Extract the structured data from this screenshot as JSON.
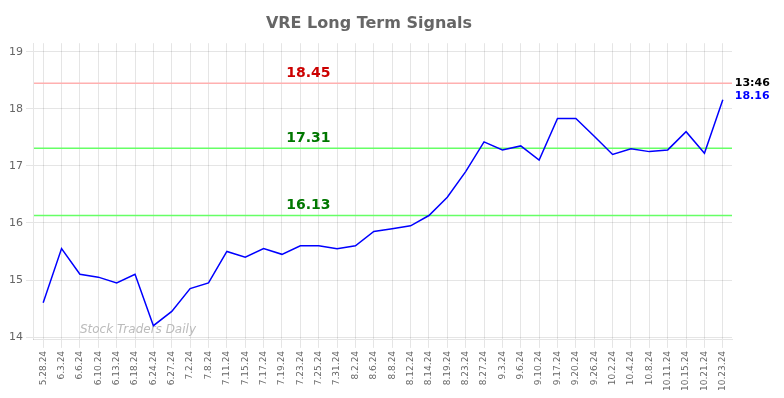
{
  "chart_data": {
    "type": "line",
    "title": "VRE Long Term Signals",
    "categories": [
      "5.28.24",
      "6.3.24",
      "6.6.24",
      "6.10.24",
      "6.13.24",
      "6.18.24",
      "6.24.24",
      "6.27.24",
      "7.2.24",
      "7.8.24",
      "7.11.24",
      "7.15.24",
      "7.17.24",
      "7.19.24",
      "7.23.24",
      "7.25.24",
      "7.31.24",
      "8.2.24",
      "8.6.24",
      "8.8.24",
      "8.12.24",
      "8.14.24",
      "8.19.24",
      "8.23.24",
      "8.27.24",
      "9.3.24",
      "9.6.24",
      "9.10.24",
      "9.17.24",
      "9.20.24",
      "9.26.24",
      "10.2.24",
      "10.4.24",
      "10.8.24",
      "10.11.24",
      "10.15.24",
      "10.21.24",
      "10.23.24"
    ],
    "values": [
      14.6,
      15.55,
      15.1,
      15.05,
      14.95,
      15.1,
      14.2,
      14.45,
      14.85,
      14.95,
      15.5,
      15.4,
      15.55,
      15.45,
      15.6,
      15.6,
      15.55,
      15.6,
      15.85,
      15.9,
      15.95,
      16.13,
      16.45,
      16.9,
      17.42,
      17.28,
      17.35,
      17.1,
      17.83,
      17.83,
      17.52,
      17.2,
      17.3,
      17.25,
      17.28,
      17.6,
      17.22,
      18.16
    ],
    "color": "blue",
    "ylim": [
      13.95,
      19.15
    ],
    "yticks": [
      14,
      15,
      16,
      17,
      18,
      19
    ],
    "grid": true,
    "hlines": [
      {
        "value": 18.45,
        "label": "18.45",
        "color": "#ffb0b0",
        "label_color": "#cc0000"
      },
      {
        "value": 17.31,
        "label": "17.31",
        "color": "#66ff66",
        "label_color": "#007700"
      },
      {
        "value": 16.13,
        "label": "16.13",
        "color": "#66ff66",
        "label_color": "#007700"
      }
    ],
    "annotations": [
      {
        "text": "13:46",
        "color": "black"
      },
      {
        "text": "18.16",
        "color": "blue"
      }
    ],
    "watermark": {
      "text": "Stock Traders Daily",
      "color": "#bbbbbb"
    }
  }
}
